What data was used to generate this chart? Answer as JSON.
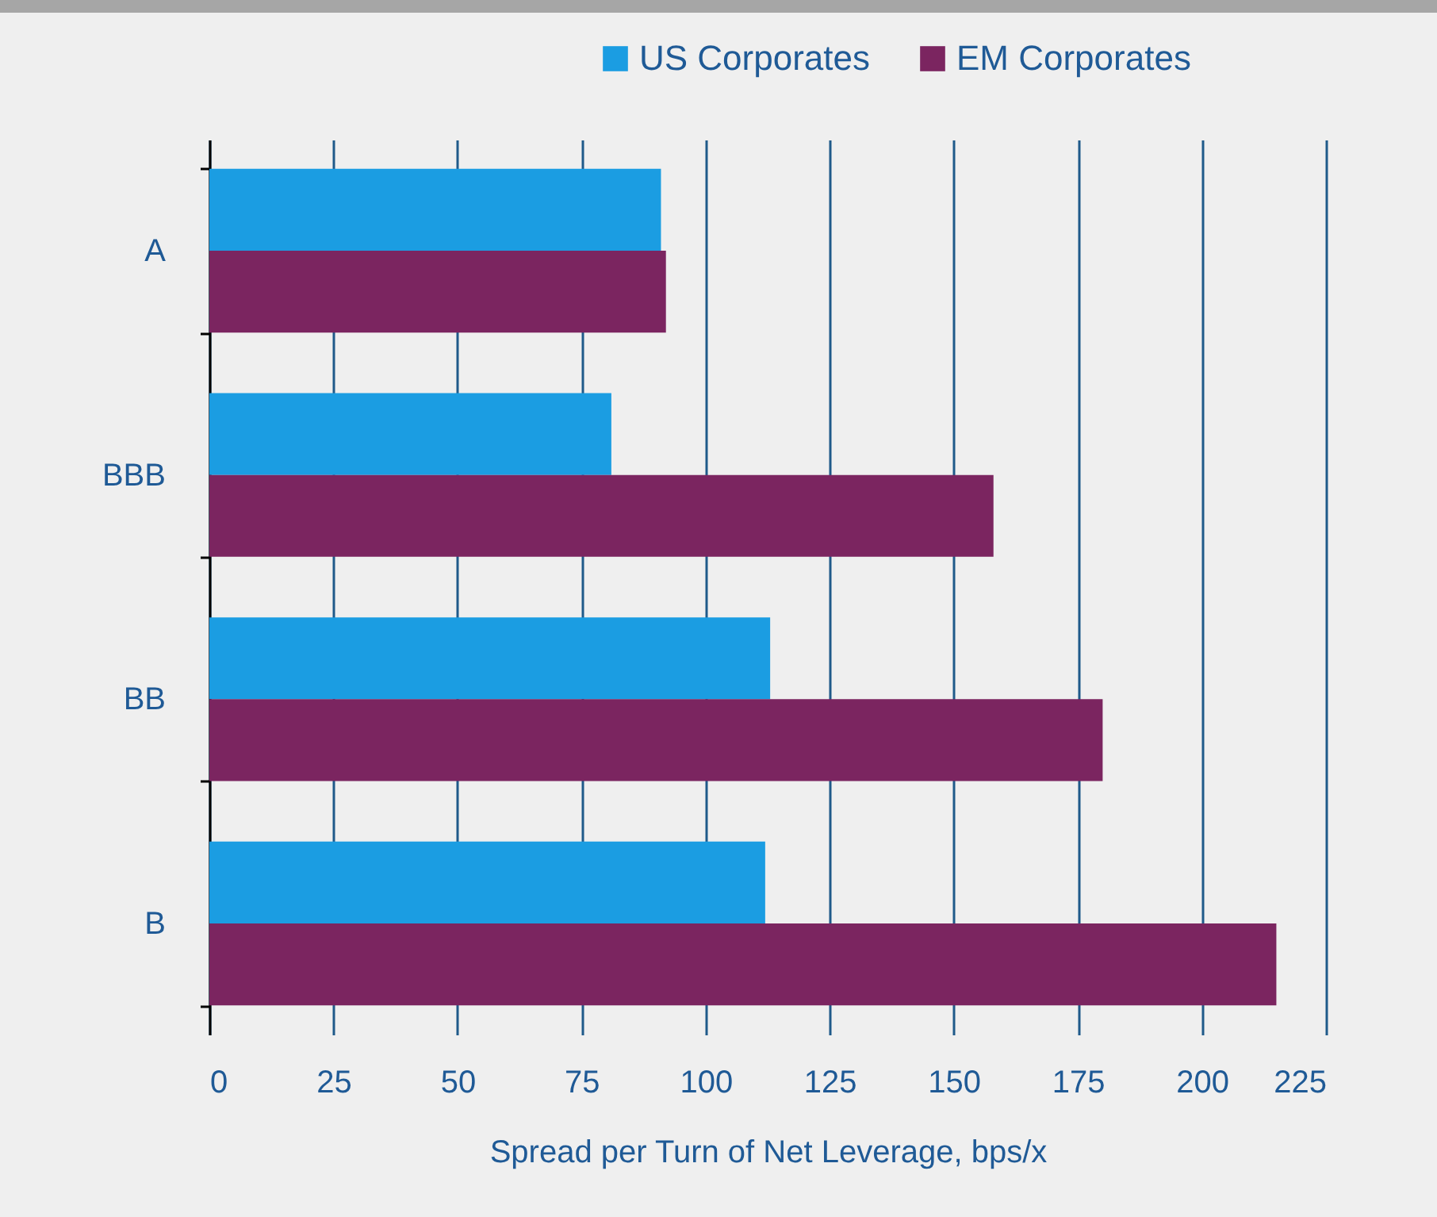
{
  "chart_data": {
    "type": "bar",
    "orientation": "horizontal",
    "xlabel": "Spread per Turn of Net Leverage, bps/x",
    "categories": [
      "A",
      "BBB",
      "BB",
      "B"
    ],
    "series": [
      {
        "name": "US Corporates",
        "color": "#1b9de2",
        "values": [
          91,
          81,
          113,
          112
        ]
      },
      {
        "name": "EM Corporates",
        "color": "#7b2560",
        "values": [
          92,
          158,
          180,
          215
        ]
      }
    ],
    "xlim": [
      0,
      225
    ],
    "xticks": [
      0,
      25,
      50,
      75,
      100,
      125,
      150,
      175,
      200,
      225
    ],
    "grid": "x",
    "legend": "top right"
  }
}
